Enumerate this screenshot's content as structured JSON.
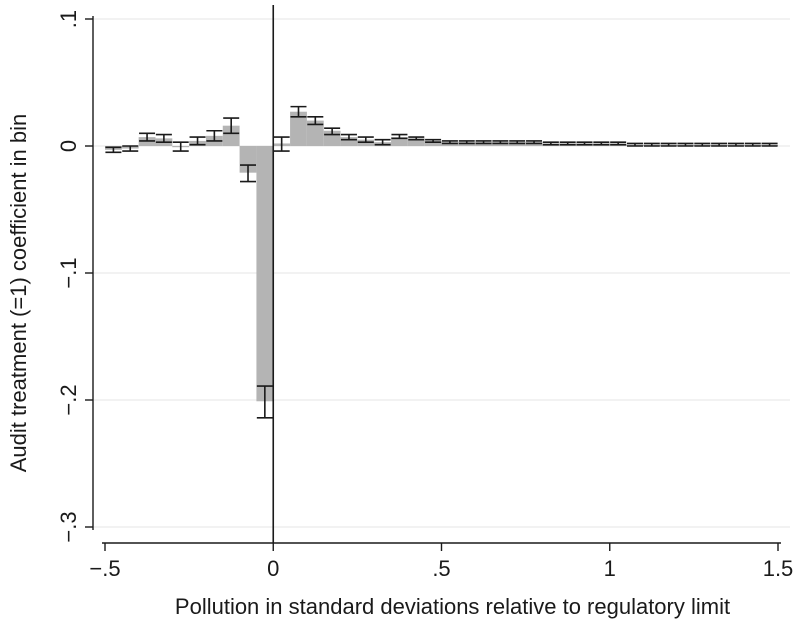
{
  "chart_data": {
    "type": "bar",
    "title": "",
    "xlabel": "Pollution in standard deviations relative to regulatory limit",
    "ylabel": "Audit treatment (=1) coefficient in bin",
    "xlim": [
      -0.5,
      1.5
    ],
    "ylim": [
      -0.3,
      0.1
    ],
    "x_ticks": [
      -0.5,
      0,
      0.5,
      1,
      1.5
    ],
    "x_tick_labels": [
      "−.5",
      "0",
      ".5",
      "1",
      "1.5"
    ],
    "y_ticks": [
      -0.3,
      -0.2,
      -0.1,
      0,
      0.1
    ],
    "y_tick_labels": [
      "−.3",
      "−.2",
      "−.1",
      "0",
      ".1"
    ],
    "grid": true,
    "bin_width": 0.05,
    "reference_line_x": 0,
    "bar_color": "#b4b4b4",
    "bars": [
      {
        "x": -0.475,
        "y": -0.003,
        "lo": -0.005,
        "hi": -0.001
      },
      {
        "x": -0.425,
        "y": -0.002,
        "lo": -0.004,
        "hi": 0.0
      },
      {
        "x": -0.375,
        "y": 0.007,
        "lo": 0.004,
        "hi": 0.01
      },
      {
        "x": -0.325,
        "y": 0.006,
        "lo": 0.003,
        "hi": 0.009
      },
      {
        "x": -0.275,
        "y": 0.0,
        "lo": -0.004,
        "hi": 0.003
      },
      {
        "x": -0.225,
        "y": 0.004,
        "lo": 0.001,
        "hi": 0.007
      },
      {
        "x": -0.175,
        "y": 0.008,
        "lo": 0.004,
        "hi": 0.012
      },
      {
        "x": -0.125,
        "y": 0.016,
        "lo": 0.01,
        "hi": 0.022
      },
      {
        "x": -0.075,
        "y": -0.021,
        "lo": -0.028,
        "hi": -0.015
      },
      {
        "x": -0.025,
        "y": -0.201,
        "lo": -0.214,
        "hi": -0.189
      },
      {
        "x": 0.025,
        "y": 0.002,
        "lo": -0.004,
        "hi": 0.007
      },
      {
        "x": 0.075,
        "y": 0.027,
        "lo": 0.023,
        "hi": 0.031
      },
      {
        "x": 0.125,
        "y": 0.02,
        "lo": 0.017,
        "hi": 0.023
      },
      {
        "x": 0.175,
        "y": 0.012,
        "lo": 0.009,
        "hi": 0.014
      },
      {
        "x": 0.225,
        "y": 0.007,
        "lo": 0.005,
        "hi": 0.009
      },
      {
        "x": 0.275,
        "y": 0.005,
        "lo": 0.003,
        "hi": 0.007
      },
      {
        "x": 0.325,
        "y": 0.003,
        "lo": 0.001,
        "hi": 0.005
      },
      {
        "x": 0.375,
        "y": 0.007,
        "lo": 0.006,
        "hi": 0.009
      },
      {
        "x": 0.425,
        "y": 0.006,
        "lo": 0.005,
        "hi": 0.007
      },
      {
        "x": 0.475,
        "y": 0.004,
        "lo": 0.003,
        "hi": 0.005
      },
      {
        "x": 0.525,
        "y": 0.003,
        "lo": 0.002,
        "hi": 0.004
      },
      {
        "x": 0.575,
        "y": 0.003,
        "lo": 0.002,
        "hi": 0.004
      },
      {
        "x": 0.625,
        "y": 0.003,
        "lo": 0.002,
        "hi": 0.004
      },
      {
        "x": 0.675,
        "y": 0.003,
        "lo": 0.002,
        "hi": 0.004
      },
      {
        "x": 0.725,
        "y": 0.003,
        "lo": 0.002,
        "hi": 0.004
      },
      {
        "x": 0.775,
        "y": 0.003,
        "lo": 0.002,
        "hi": 0.004
      },
      {
        "x": 0.825,
        "y": 0.002,
        "lo": 0.001,
        "hi": 0.003
      },
      {
        "x": 0.875,
        "y": 0.002,
        "lo": 0.001,
        "hi": 0.003
      },
      {
        "x": 0.925,
        "y": 0.002,
        "lo": 0.001,
        "hi": 0.003
      },
      {
        "x": 0.975,
        "y": 0.002,
        "lo": 0.001,
        "hi": 0.003
      },
      {
        "x": 1.025,
        "y": 0.002,
        "lo": 0.001,
        "hi": 0.003
      },
      {
        "x": 1.075,
        "y": 0.001,
        "lo": 0.0,
        "hi": 0.002
      },
      {
        "x": 1.125,
        "y": 0.001,
        "lo": 0.0,
        "hi": 0.002
      },
      {
        "x": 1.175,
        "y": 0.001,
        "lo": 0.0,
        "hi": 0.002
      },
      {
        "x": 1.225,
        "y": 0.001,
        "lo": 0.0,
        "hi": 0.002
      },
      {
        "x": 1.275,
        "y": 0.001,
        "lo": 0.0,
        "hi": 0.002
      },
      {
        "x": 1.325,
        "y": 0.001,
        "lo": 0.0,
        "hi": 0.002
      },
      {
        "x": 1.375,
        "y": 0.001,
        "lo": 0.0,
        "hi": 0.002
      },
      {
        "x": 1.425,
        "y": 0.001,
        "lo": 0.0,
        "hi": 0.002
      },
      {
        "x": 1.475,
        "y": 0.001,
        "lo": 0.0,
        "hi": 0.002
      }
    ]
  }
}
